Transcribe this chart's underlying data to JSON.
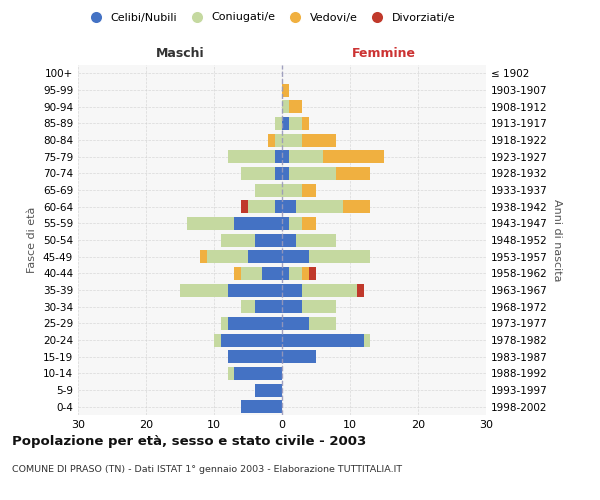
{
  "age_groups": [
    "0-4",
    "5-9",
    "10-14",
    "15-19",
    "20-24",
    "25-29",
    "30-34",
    "35-39",
    "40-44",
    "45-49",
    "50-54",
    "55-59",
    "60-64",
    "65-69",
    "70-74",
    "75-79",
    "80-84",
    "85-89",
    "90-94",
    "95-99",
    "100+"
  ],
  "birth_years": [
    "1998-2002",
    "1993-1997",
    "1988-1992",
    "1983-1987",
    "1978-1982",
    "1973-1977",
    "1968-1972",
    "1963-1967",
    "1958-1962",
    "1953-1957",
    "1948-1952",
    "1943-1947",
    "1938-1942",
    "1933-1937",
    "1928-1932",
    "1923-1927",
    "1918-1922",
    "1913-1917",
    "1908-1912",
    "1903-1907",
    "≤ 1902"
  ],
  "male": {
    "celibi": [
      6,
      4,
      7,
      8,
      9,
      8,
      4,
      8,
      3,
      5,
      4,
      7,
      1,
      0,
      1,
      1,
      0,
      0,
      0,
      0,
      0
    ],
    "coniugati": [
      0,
      0,
      1,
      0,
      1,
      1,
      2,
      7,
      3,
      6,
      5,
      7,
      4,
      4,
      5,
      7,
      1,
      1,
      0,
      0,
      0
    ],
    "vedovi": [
      0,
      0,
      0,
      0,
      0,
      0,
      0,
      0,
      1,
      1,
      0,
      0,
      0,
      0,
      0,
      0,
      1,
      0,
      0,
      0,
      0
    ],
    "divorziati": [
      0,
      0,
      0,
      0,
      0,
      0,
      0,
      0,
      0,
      0,
      0,
      0,
      1,
      0,
      0,
      0,
      0,
      0,
      0,
      0,
      0
    ]
  },
  "female": {
    "nubili": [
      0,
      0,
      0,
      5,
      12,
      4,
      3,
      3,
      1,
      4,
      2,
      1,
      2,
      0,
      1,
      1,
      0,
      1,
      0,
      0,
      0
    ],
    "coniugate": [
      0,
      0,
      0,
      0,
      1,
      4,
      5,
      8,
      2,
      9,
      6,
      2,
      7,
      3,
      7,
      5,
      3,
      2,
      1,
      0,
      0
    ],
    "vedove": [
      0,
      0,
      0,
      0,
      0,
      0,
      0,
      0,
      1,
      0,
      0,
      2,
      4,
      2,
      5,
      9,
      5,
      1,
      2,
      1,
      0
    ],
    "divorziate": [
      0,
      0,
      0,
      0,
      0,
      0,
      0,
      1,
      1,
      0,
      0,
      0,
      0,
      0,
      0,
      0,
      0,
      0,
      0,
      0,
      0
    ]
  },
  "colors": {
    "celibi_nubili": "#4472c4",
    "coniugati": "#c5d9a0",
    "vedovi": "#f0b040",
    "divorziati": "#c0392b"
  },
  "title": "Popolazione per età, sesso e stato civile - 2003",
  "subtitle": "COMUNE DI PRASO (TN) - Dati ISTAT 1° gennaio 2003 - Elaborazione TUTTITALIA.IT",
  "xlabel_left": "Maschi",
  "xlabel_right": "Femmine",
  "ylabel": "Fasce di età",
  "ylabel_right": "Anni di nascita",
  "xlim": 30,
  "legend_labels": [
    "Celibi/Nubili",
    "Coniugati/e",
    "Vedovi/e",
    "Divorziati/e"
  ],
  "background_color": "#ffffff",
  "grid_color": "#cccccc"
}
